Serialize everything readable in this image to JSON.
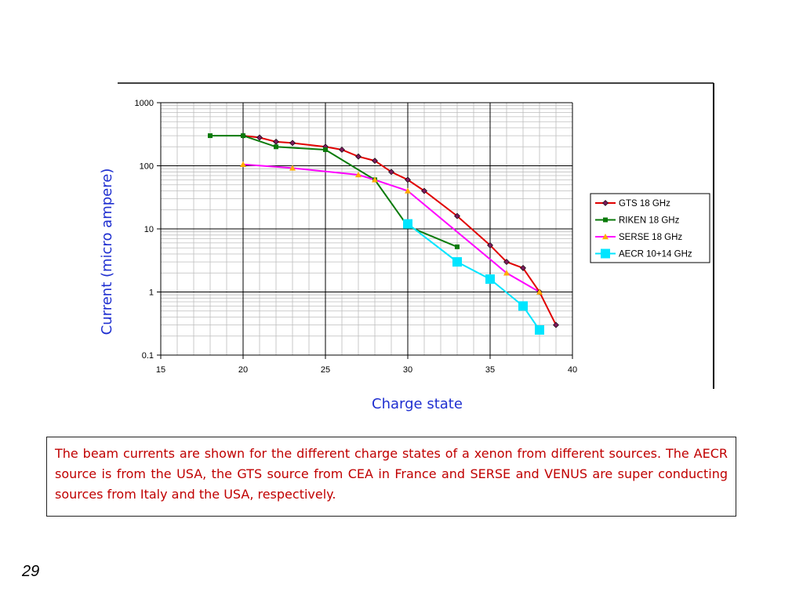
{
  "page": {
    "number": "29"
  },
  "caption": "The beam currents are shown for the different charge states of a xenon from different sources. The AECR source is from the USA, the GTS source from CEA in France and SERSE and VENUS are super conducting sources from Italy and the USA, respectively.",
  "chart_data": {
    "type": "line",
    "title": "",
    "xlabel": "Charge state",
    "ylabel": "Current (micro ampere)",
    "xlim": [
      15,
      40
    ],
    "ylim": [
      0.1,
      1000
    ],
    "y_scale": "log",
    "x_ticks": [
      "15",
      "20",
      "25",
      "30",
      "35",
      "40"
    ],
    "y_ticks": [
      "0.1",
      "1",
      "10",
      "100",
      "1000"
    ],
    "grid": true,
    "legend_position": "right",
    "series": [
      {
        "name": "GTS 18 GHz",
        "color": "#e00000",
        "marker": "diamond",
        "marker_color": "#7a1a5a",
        "x": [
          20,
          21,
          22,
          23,
          25,
          26,
          27,
          28,
          29,
          30,
          31,
          33,
          35,
          36,
          37,
          38,
          39
        ],
        "y": [
          300,
          280,
          240,
          230,
          200,
          180,
          140,
          120,
          80,
          60,
          40,
          16,
          5.5,
          3,
          2.4,
          1,
          0.3
        ]
      },
      {
        "name": "RIKEN 18 GHz",
        "color": "#0a7a0a",
        "marker": "square",
        "marker_color": "#0a7a0a",
        "x": [
          18,
          20,
          22,
          25,
          28,
          30,
          33
        ],
        "y": [
          300,
          300,
          200,
          180,
          60,
          11,
          5.2
        ]
      },
      {
        "name": "SERSE 18 GHz",
        "color": "#ff00ff",
        "marker": "triangle",
        "marker_color": "#ffaa00",
        "x": [
          20,
          23,
          27,
          28,
          30,
          36,
          38
        ],
        "y": [
          105,
          92,
          72,
          60,
          40,
          2,
          1
        ]
      },
      {
        "name": "AECR 10+14 GHz",
        "color": "#00e5ff",
        "marker": "big-square",
        "marker_color": "#00e5ff",
        "x": [
          30,
          33,
          35,
          37,
          38
        ],
        "y": [
          12,
          3,
          1.6,
          0.6,
          0.25
        ]
      }
    ]
  }
}
